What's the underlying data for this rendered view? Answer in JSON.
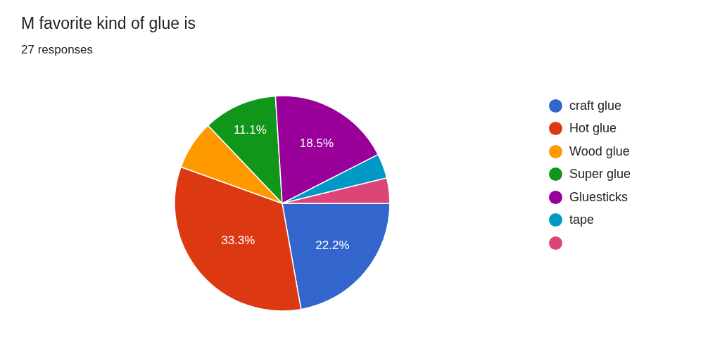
{
  "chart_data": {
    "type": "pie",
    "title": "M favorite kind of glue is",
    "subtitle": "27 responses",
    "categories": [
      "craft glue",
      "Hot glue",
      "Wood glue",
      "Super glue",
      "Gluesticks",
      "tape",
      null
    ],
    "values": [
      22.2,
      33.3,
      7.4,
      11.1,
      18.5,
      3.7,
      3.8
    ],
    "colors": [
      "#3366cc",
      "#dc3912",
      "#ff9900",
      "#109618",
      "#990099",
      "#0099c6",
      "#dd4477"
    ],
    "value_labels": [
      "22.2%",
      "33.3%",
      null,
      "11.1%",
      "18.5%",
      null,
      null
    ],
    "legend": "right"
  }
}
